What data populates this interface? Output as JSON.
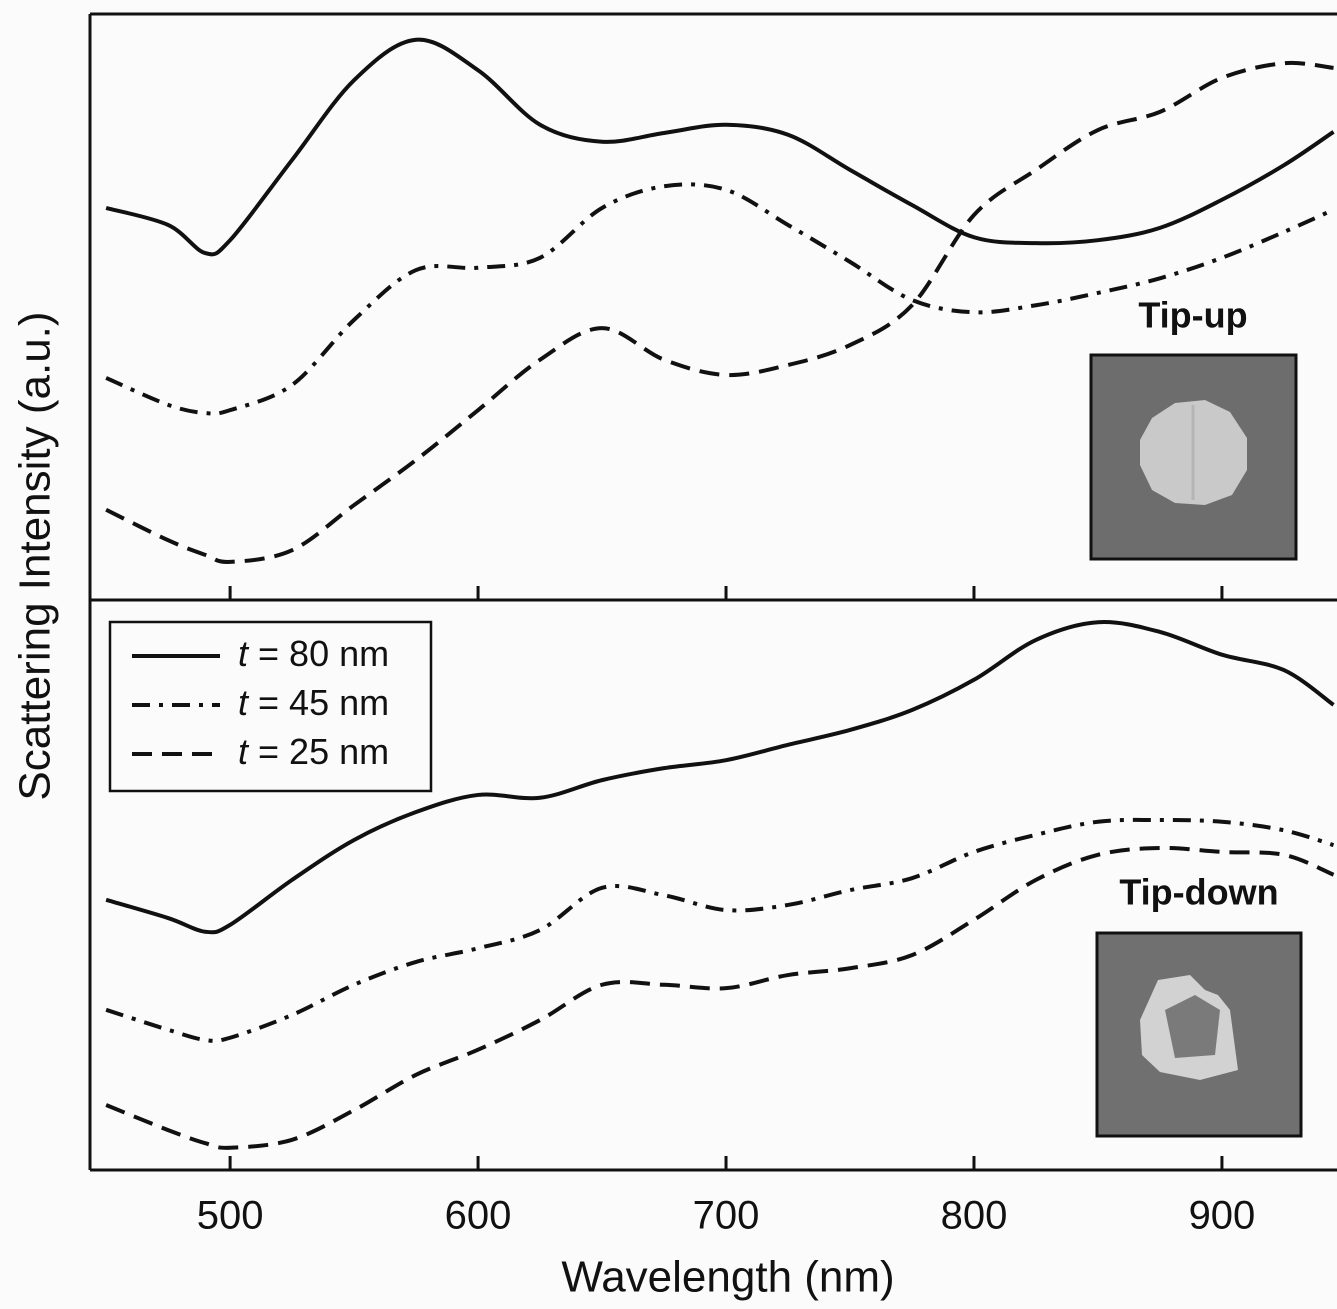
{
  "chart_data": [
    {
      "type": "line",
      "ylabel": "Scattering Intensity (a.u.)",
      "annotation": "Tip-up",
      "x": [
        450,
        475,
        490,
        500,
        525,
        550,
        575,
        600,
        625,
        650,
        675,
        700,
        725,
        750,
        775,
        800,
        825,
        850,
        875,
        900,
        925,
        945
      ],
      "xlim": [
        443.5,
        946.4
      ],
      "ylim": [
        0,
        100
      ],
      "series": [
        {
          "color": "#111111",
          "dash": "solid",
          "values": [
            66.9,
            64.0,
            59.2,
            61.4,
            75.1,
            88.7,
            95.6,
            90.4,
            81.1,
            78.2,
            79.7,
            81.1,
            79.4,
            73.4,
            67.4,
            61.9,
            60.9,
            61.4,
            63.5,
            68.3,
            74.2,
            79.9
          ]
        },
        {
          "color": "#111111",
          "dash": "dashdot",
          "values": [
            37.9,
            33.3,
            31.9,
            32.4,
            36.7,
            47.8,
            56.3,
            56.7,
            58.4,
            66.9,
            70.6,
            70.0,
            64.0,
            57.7,
            51.2,
            49.1,
            50.3,
            52.4,
            54.9,
            58.4,
            62.8,
            66.6
          ]
        },
        {
          "color": "#111111",
          "dash": "dashed",
          "values": [
            15.4,
            10.2,
            7.7,
            6.5,
            8.5,
            16.2,
            23.9,
            32.4,
            41.0,
            46.4,
            41.0,
            38.4,
            40.1,
            43.5,
            50.3,
            65.7,
            73.4,
            80.2,
            83.3,
            89.1,
            91.6,
            90.8
          ]
        }
      ]
    },
    {
      "type": "line",
      "xlabel": "Wavelength (nm)",
      "annotation": "Tip-down",
      "x": [
        450,
        475,
        490,
        500,
        525,
        550,
        575,
        600,
        625,
        650,
        675,
        700,
        725,
        750,
        775,
        800,
        825,
        850,
        875,
        900,
        925,
        945
      ],
      "xlim": [
        443.5,
        946.4
      ],
      "ylim": [
        0,
        100
      ],
      "xticks": [
        500,
        600,
        700,
        800,
        900
      ],
      "legend": "upper left",
      "series": [
        {
          "name": "t = 80 nm",
          "color": "#111111",
          "dash": "solid",
          "values": [
            47.4,
            44.2,
            41.8,
            43.0,
            50.9,
            57.9,
            62.8,
            65.8,
            65.3,
            68.4,
            70.5,
            71.9,
            74.6,
            77.2,
            80.7,
            86.0,
            93.0,
            96.1,
            94.4,
            90.4,
            87.7,
            81.6
          ]
        },
        {
          "name": "t = 45 nm",
          "color": "#111111",
          "dash": "dashdot",
          "values": [
            28.1,
            24.6,
            22.8,
            23.2,
            27.2,
            32.5,
            36.5,
            38.9,
            42.1,
            49.5,
            48.2,
            45.6,
            46.5,
            49.1,
            51.2,
            55.8,
            58.8,
            61.1,
            61.4,
            61.1,
            59.6,
            57.0
          ]
        },
        {
          "name": "t = 25 nm",
          "color": "#111111",
          "dash": "dashed",
          "values": [
            11.4,
            7.0,
            4.7,
            3.9,
            5.3,
            10.5,
            16.7,
            21.1,
            26.3,
            32.5,
            32.5,
            31.9,
            34.2,
            35.4,
            37.7,
            43.9,
            50.9,
            55.3,
            56.5,
            55.8,
            55.3,
            51.8
          ]
        }
      ]
    }
  ]
}
